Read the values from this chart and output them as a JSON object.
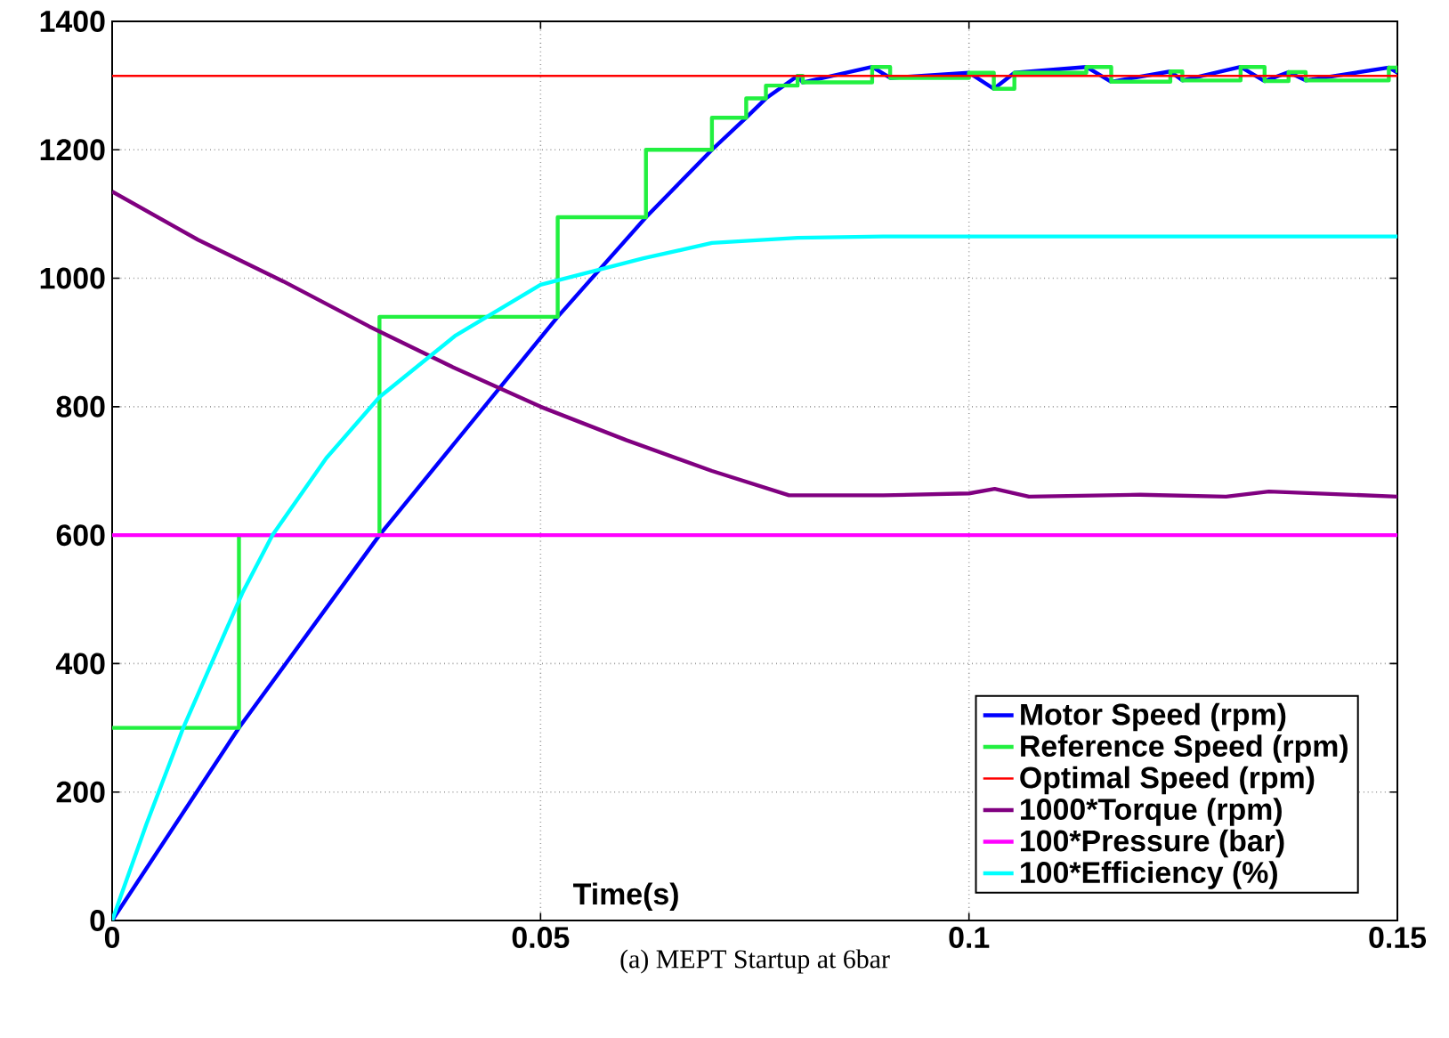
{
  "chart_data": {
    "type": "line",
    "xlabel": "Time(s)",
    "annotations": [
      "(a) MEPT Startup at 6bar"
    ],
    "xlim": [
      0,
      0.15
    ],
    "ylim": [
      0,
      1400
    ],
    "xticks": [
      0,
      0.05,
      0.1,
      0.15
    ],
    "yticks": [
      0,
      200,
      400,
      600,
      800,
      1000,
      1200,
      1400
    ],
    "grid": true,
    "legend": "bottom right",
    "line_style": "solid",
    "marker": "none",
    "series": [
      {
        "name": "Motor Speed (rpm)",
        "color": "#0000ff",
        "x": [
          0,
          0.0148,
          0.0312,
          0.052,
          0.0623,
          0.07,
          0.074,
          0.0763,
          0.08,
          0.0806,
          0.0887,
          0.0908,
          0.1,
          0.1029,
          0.1053,
          0.1137,
          0.1166,
          0.1235,
          0.1249,
          0.1317,
          0.1345,
          0.1373,
          0.1393,
          0.149,
          0.15
        ],
        "values": [
          0,
          300,
          600,
          940,
          1095,
          1200,
          1250,
          1280,
          1315,
          1305,
          1329,
          1312,
          1320,
          1295,
          1320,
          1329,
          1306,
          1322,
          1308,
          1329,
          1307,
          1321,
          1308,
          1328,
          1320
        ]
      },
      {
        "name": "Reference Speed (rpm)",
        "color": "#22f040",
        "type": "step",
        "x": [
          0,
          0.0148,
          0.0312,
          0.052,
          0.0623,
          0.07,
          0.074,
          0.0763,
          0.08,
          0.0806,
          0.0887,
          0.0908,
          0.1,
          0.1029,
          0.1053,
          0.1137,
          0.1166,
          0.1235,
          0.1249,
          0.1317,
          0.1345,
          0.1373,
          0.1393,
          0.149,
          0.15
        ],
        "values": [
          300,
          600,
          940,
          1095,
          1200,
          1250,
          1280,
          1300,
          1315,
          1305,
          1329,
          1312,
          1320,
          1295,
          1320,
          1329,
          1306,
          1322,
          1308,
          1329,
          1307,
          1321,
          1308,
          1328,
          1320
        ]
      },
      {
        "name": "Optimal Speed (rpm)",
        "color": "#ff0000",
        "x": [
          0,
          0.15
        ],
        "values": [
          1315,
          1315
        ]
      },
      {
        "name": "1000*Torque (rpm)",
        "color": "#800080",
        "x": [
          0,
          0.01,
          0.02,
          0.03,
          0.04,
          0.05,
          0.06,
          0.07,
          0.079,
          0.09,
          0.1,
          0.103,
          0.107,
          0.12,
          0.13,
          0.135,
          0.15
        ],
        "values": [
          1135,
          1060,
          995,
          925,
          860,
          800,
          748,
          700,
          662,
          662,
          665,
          672,
          660,
          663,
          660,
          668,
          660
        ]
      },
      {
        "name": "100*Pressure (bar)",
        "color": "#ff00ff",
        "x": [
          0,
          0.15
        ],
        "values": [
          600,
          600
        ]
      },
      {
        "name": "100*Efficiency (%)",
        "color": "#00ffff",
        "x": [
          0,
          0.004,
          0.0083,
          0.0152,
          0.0187,
          0.025,
          0.0312,
          0.04,
          0.05,
          0.062,
          0.07,
          0.08,
          0.09,
          0.15
        ],
        "values": [
          0,
          150,
          300,
          510,
          600,
          720,
          815,
          910,
          990,
          1031,
          1055,
          1063,
          1065,
          1065
        ]
      }
    ]
  }
}
